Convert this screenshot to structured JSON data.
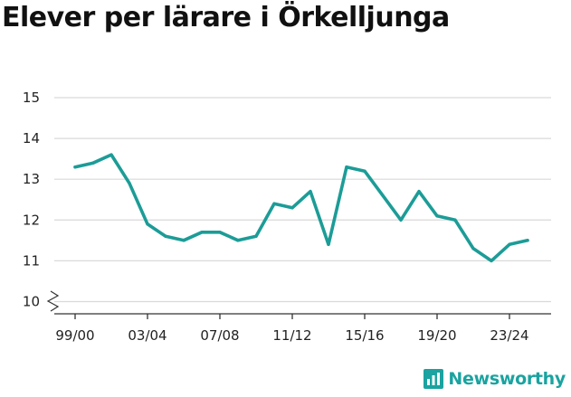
{
  "chart_data": {
    "type": "line",
    "title": "Elever per lärare i Örkelljunga",
    "x": [
      "99/00",
      "00/01",
      "01/02",
      "02/03",
      "03/04",
      "04/05",
      "05/06",
      "06/07",
      "07/08",
      "08/09",
      "09/10",
      "10/11",
      "11/12",
      "12/13",
      "13/14",
      "14/15",
      "15/16",
      "16/17",
      "17/18",
      "18/19",
      "19/20",
      "20/21",
      "21/22",
      "22/23",
      "23/24",
      "24/25"
    ],
    "xticks": [
      "99/00",
      "03/04",
      "07/08",
      "11/12",
      "15/16",
      "19/20",
      "23/24"
    ],
    "yticks": [
      10,
      11,
      12,
      13,
      14,
      15
    ],
    "ylim": [
      9.7,
      15
    ],
    "series": [
      {
        "values": [
          13.3,
          13.4,
          13.6,
          12.9,
          11.9,
          11.6,
          11.5,
          11.7,
          11.7,
          11.5,
          11.6,
          12.4,
          12.3,
          12.7,
          11.4,
          13.3,
          13.2,
          12.6,
          12.0,
          12.7,
          12.1,
          12.0,
          11.3,
          11.0,
          11.4,
          11.5
        ],
        "color": "#1c9c97"
      }
    ],
    "grid": true,
    "axis_break": true
  },
  "brand": {
    "name": "Newsworthy",
    "icon": "newsworthy-logo-icon",
    "color": "#1aa3a0"
  }
}
